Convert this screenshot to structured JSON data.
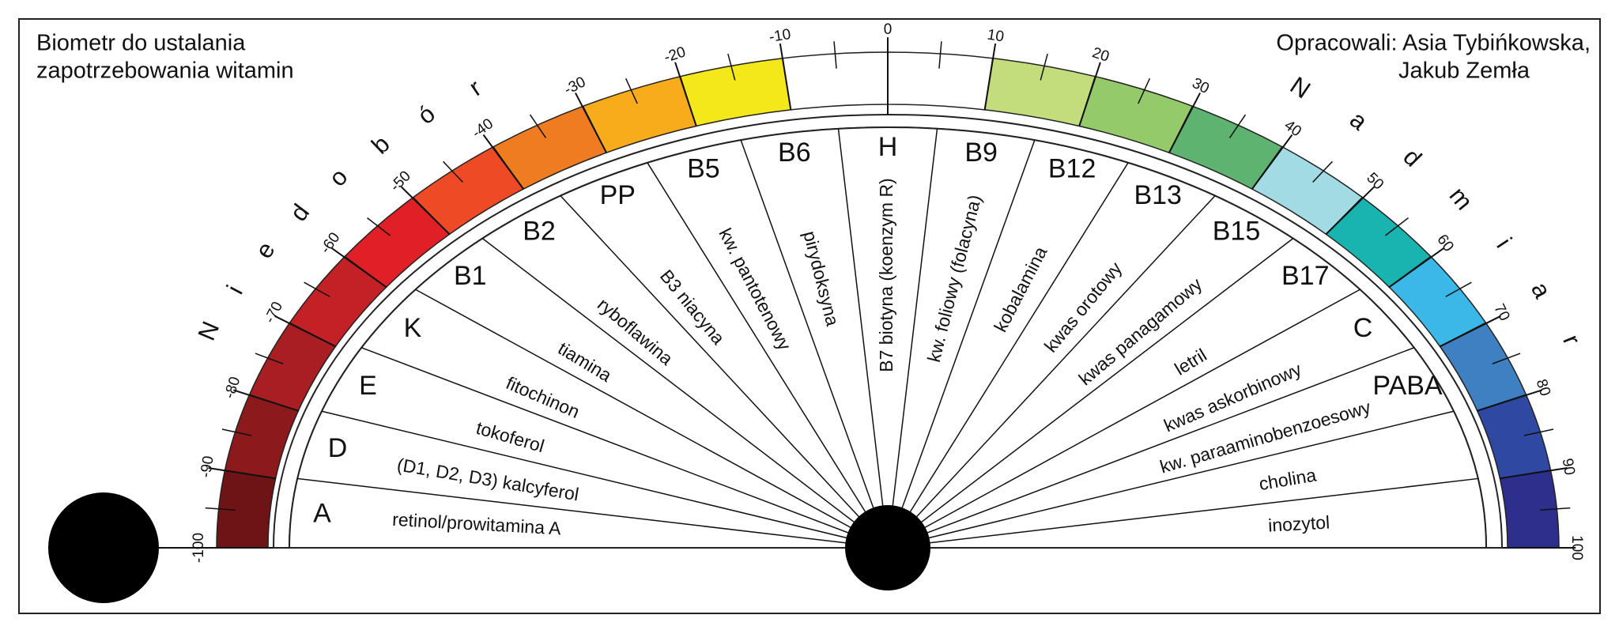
{
  "header": {
    "title_lines": [
      "Biometr do ustalania",
      "zapotrzebowania witamin"
    ],
    "authors_lines": [
      "Opracowali: Asia Tybińkowska,",
      "Jakub Zemła"
    ]
  },
  "scale": {
    "ticks": [
      -100,
      -90,
      -80,
      -70,
      -60,
      -50,
      -40,
      -30,
      -20,
      -10,
      0,
      10,
      20,
      30,
      40,
      50,
      60,
      70,
      80,
      90,
      100
    ],
    "deficit_letters": [
      "N",
      "i",
      "e",
      "d",
      "o",
      "b",
      "ó",
      "r"
    ],
    "excess_letters": [
      "N",
      "a",
      "d",
      "m",
      "i",
      "a",
      "r"
    ]
  },
  "sectors": [
    {
      "code": "A",
      "name": "retinol/prowitamina A"
    },
    {
      "code": "D",
      "name": "(D1, D2, D3) kalcyferol"
    },
    {
      "code": "E",
      "name": "tokoferol"
    },
    {
      "code": "K",
      "name": "fitochinon"
    },
    {
      "code": "B1",
      "name": "tiamina"
    },
    {
      "code": "B2",
      "name": "ryboflawina"
    },
    {
      "code": "PP",
      "name": "B3 niacyna"
    },
    {
      "code": "B5",
      "name": "kw. pantotenowy"
    },
    {
      "code": "B6",
      "name": "pirydoksyna"
    },
    {
      "code": "H",
      "name": "B7 biotyna (koenzym R)"
    },
    {
      "code": "B9",
      "name": "kw. foliowy (folacyna)"
    },
    {
      "code": "B12",
      "name": "kobalamina"
    },
    {
      "code": "B13",
      "name": "kwas orotowy"
    },
    {
      "code": "B15",
      "name": "kwas panagamowy"
    },
    {
      "code": "B17",
      "name": "letril"
    },
    {
      "code": "C",
      "name": "kwas askorbinowy"
    },
    {
      "code": "PABA",
      "name": "kw. paraaminobenzoesowy"
    },
    {
      "name": "cholina"
    },
    {
      "name": "inozytol"
    }
  ]
}
